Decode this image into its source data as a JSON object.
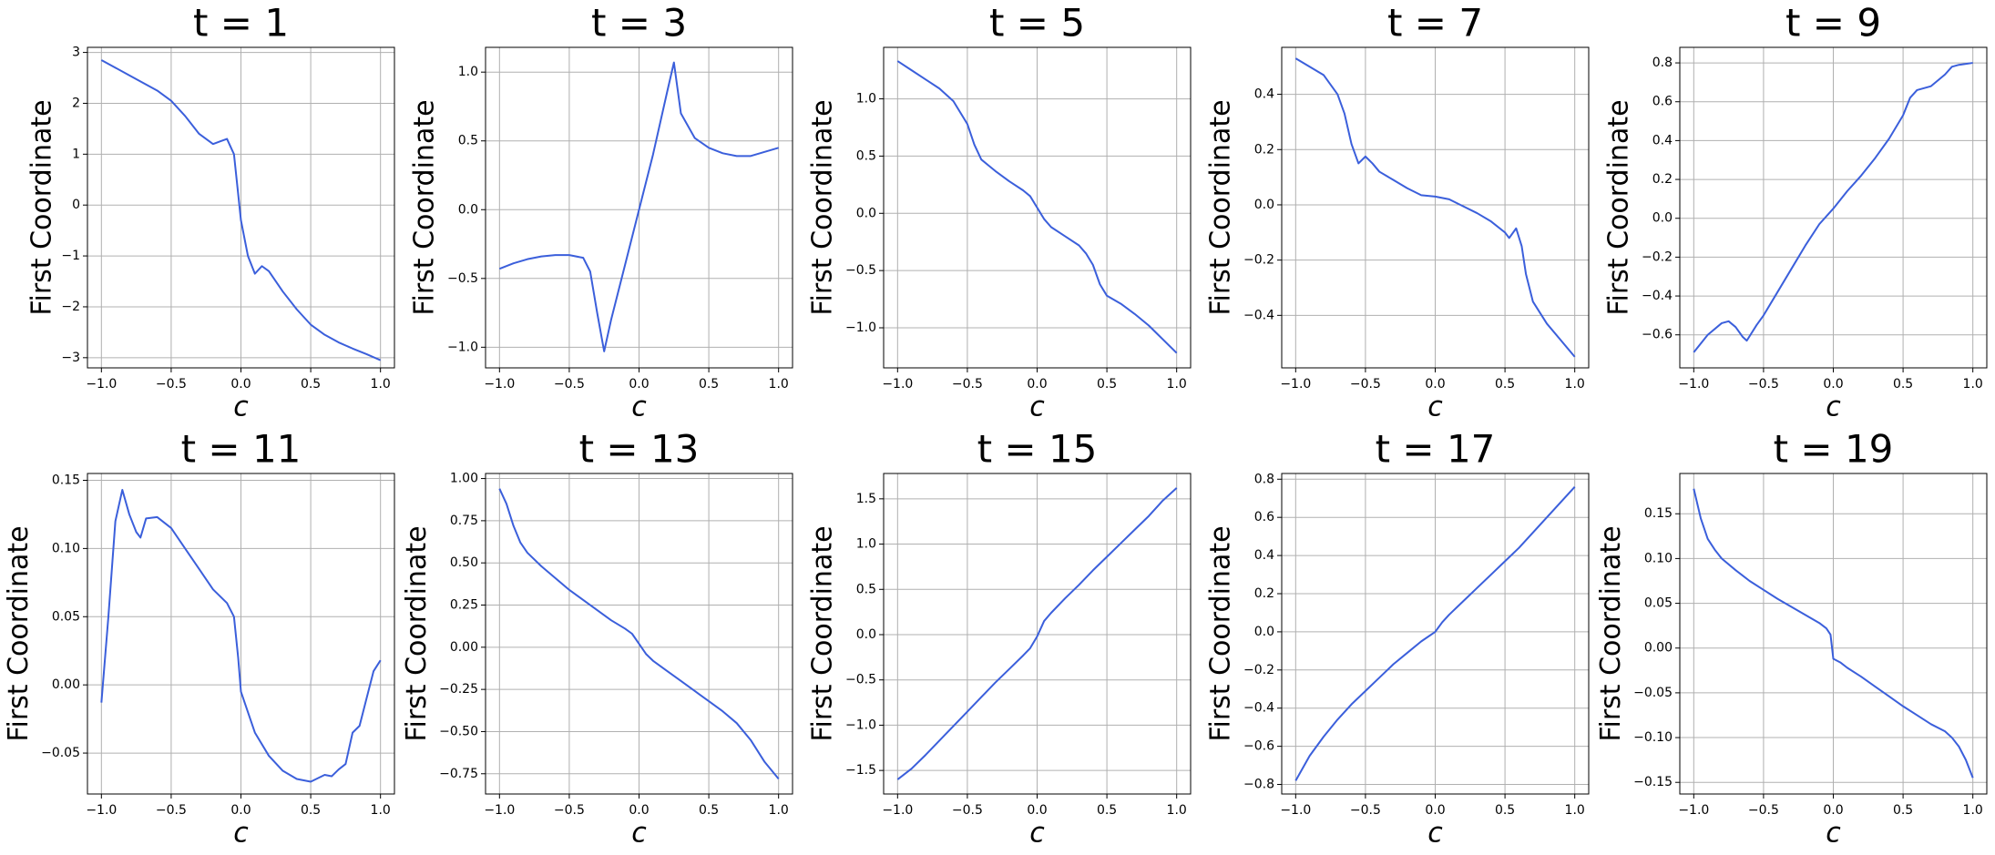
{
  "chart_data": [
    {
      "type": "line",
      "title": "t = 1",
      "x_label": "c",
      "y_label": "First Coordinate",
      "color": "#3b5fdb",
      "grid": true,
      "x": [
        -1,
        -0.9,
        -0.8,
        -0.7,
        -0.6,
        -0.5,
        -0.4,
        -0.3,
        -0.2,
        -0.15,
        -0.1,
        -0.05,
        0,
        0.05,
        0.1,
        0.15,
        0.2,
        0.3,
        0.4,
        0.5,
        0.6,
        0.7,
        0.8,
        0.9,
        1
      ],
      "values": [
        2.85,
        2.7,
        2.55,
        2.4,
        2.25,
        2.05,
        1.75,
        1.4,
        1.2,
        1.25,
        1.3,
        1.0,
        -0.3,
        -1.0,
        -1.35,
        -1.2,
        -1.3,
        -1.7,
        -2.05,
        -2.35,
        -2.55,
        -2.7,
        -2.82,
        -2.93,
        -3.05
      ],
      "xlim": [
        -1.1,
        1.1
      ],
      "ylim": [
        -3.2,
        3.1
      ],
      "xticks": [
        {
          "value": -1,
          "label": "−1.0"
        },
        {
          "value": -0.5,
          "label": "−0.5"
        },
        {
          "value": 0,
          "label": "0.0"
        },
        {
          "value": 0.5,
          "label": "0.5"
        },
        {
          "value": 1,
          "label": "1.0"
        }
      ],
      "yticks": [
        {
          "value": -3,
          "label": "−3"
        },
        {
          "value": -2,
          "label": "−2"
        },
        {
          "value": -1,
          "label": "−1"
        },
        0,
        1,
        2,
        3
      ]
    },
    {
      "type": "line",
      "title": "t = 3",
      "x_label": "c",
      "y_label": "First Coordinate",
      "color": "#3b5fdb",
      "grid": true,
      "x": [
        -1,
        -0.9,
        -0.8,
        -0.7,
        -0.6,
        -0.5,
        -0.4,
        -0.35,
        -0.3,
        -0.25,
        -0.2,
        -0.1,
        0,
        0.1,
        0.2,
        0.25,
        0.3,
        0.4,
        0.5,
        0.6,
        0.7,
        0.8,
        0.9,
        1
      ],
      "values": [
        -0.43,
        -0.39,
        -0.36,
        -0.34,
        -0.33,
        -0.33,
        -0.35,
        -0.45,
        -0.75,
        -1.03,
        -0.8,
        -0.4,
        0.0,
        0.4,
        0.85,
        1.07,
        0.7,
        0.52,
        0.45,
        0.41,
        0.39,
        0.39,
        0.42,
        0.45
      ],
      "xlim": [
        -1.1,
        1.1
      ],
      "ylim": [
        -1.15,
        1.18
      ],
      "xticks": [
        {
          "value": -1,
          "label": "−1.0"
        },
        {
          "value": -0.5,
          "label": "−0.5"
        },
        {
          "value": 0,
          "label": "0.0"
        },
        {
          "value": 0.5,
          "label": "0.5"
        },
        {
          "value": 1,
          "label": "1.0"
        }
      ],
      "yticks": [
        {
          "value": -1,
          "label": "−1.0"
        },
        {
          "value": -0.5,
          "label": "−0.5"
        },
        {
          "value": 0,
          "label": "0.0"
        },
        0.5,
        {
          "value": 1,
          "label": "1.0"
        }
      ]
    },
    {
      "type": "line",
      "title": "t = 5",
      "x_label": "c",
      "y_label": "First Coordinate",
      "color": "#3b5fdb",
      "grid": true,
      "x": [
        -1,
        -0.9,
        -0.8,
        -0.7,
        -0.6,
        -0.5,
        -0.45,
        -0.4,
        -0.35,
        -0.3,
        -0.2,
        -0.1,
        -0.05,
        0,
        0.05,
        0.1,
        0.2,
        0.3,
        0.35,
        0.4,
        0.45,
        0.5,
        0.6,
        0.7,
        0.8,
        0.9,
        1
      ],
      "values": [
        1.33,
        1.25,
        1.17,
        1.09,
        0.98,
        0.78,
        0.6,
        0.47,
        0.42,
        0.37,
        0.28,
        0.2,
        0.15,
        0.05,
        -0.05,
        -0.12,
        -0.2,
        -0.28,
        -0.35,
        -0.45,
        -0.62,
        -0.72,
        -0.79,
        -0.88,
        -0.98,
        -1.1,
        -1.22
      ],
      "xlim": [
        -1.1,
        1.1
      ],
      "ylim": [
        -1.35,
        1.45
      ],
      "xticks": [
        {
          "value": -1,
          "label": "−1.0"
        },
        {
          "value": -0.5,
          "label": "−0.5"
        },
        {
          "value": 0,
          "label": "0.0"
        },
        {
          "value": 0.5,
          "label": "0.5"
        },
        {
          "value": 1,
          "label": "1.0"
        }
      ],
      "yticks": [
        {
          "value": -1,
          "label": "−1.0"
        },
        {
          "value": -0.5,
          "label": "−0.5"
        },
        {
          "value": 0,
          "label": "0.0"
        },
        0.5,
        {
          "value": 1,
          "label": "1.0"
        }
      ]
    },
    {
      "type": "line",
      "title": "t = 7",
      "x_label": "c",
      "y_label": "First Coordinate",
      "color": "#3b5fdb",
      "grid": true,
      "x": [
        -1,
        -0.9,
        -0.8,
        -0.7,
        -0.65,
        -0.6,
        -0.55,
        -0.5,
        -0.45,
        -0.4,
        -0.3,
        -0.2,
        -0.1,
        0,
        0.1,
        0.2,
        0.3,
        0.4,
        0.5,
        0.53,
        0.58,
        0.62,
        0.65,
        0.7,
        0.8,
        0.9,
        1
      ],
      "values": [
        0.53,
        0.5,
        0.47,
        0.4,
        0.33,
        0.22,
        0.15,
        0.175,
        0.15,
        0.12,
        0.09,
        0.06,
        0.035,
        0.03,
        0.02,
        -0.005,
        -0.03,
        -0.06,
        -0.1,
        -0.12,
        -0.085,
        -0.15,
        -0.25,
        -0.35,
        -0.43,
        -0.49,
        -0.55
      ],
      "xlim": [
        -1.1,
        1.1
      ],
      "ylim": [
        -0.59,
        0.57
      ],
      "xticks": [
        {
          "value": -1,
          "label": "−1.0"
        },
        {
          "value": -0.5,
          "label": "−0.5"
        },
        {
          "value": 0,
          "label": "0.0"
        },
        {
          "value": 0.5,
          "label": "0.5"
        },
        {
          "value": 1,
          "label": "1.0"
        }
      ],
      "yticks": [
        {
          "value": -0.4,
          "label": "−0.4"
        },
        {
          "value": -0.2,
          "label": "−0.2"
        },
        {
          "value": 0,
          "label": "0.0"
        },
        0.2,
        0.4
      ]
    },
    {
      "type": "line",
      "title": "t = 9",
      "x_label": "c",
      "y_label": "First Coordinate",
      "color": "#3b5fdb",
      "grid": true,
      "x": [
        -1,
        -0.9,
        -0.8,
        -0.75,
        -0.7,
        -0.65,
        -0.62,
        -0.55,
        -0.5,
        -0.4,
        -0.3,
        -0.2,
        -0.1,
        0,
        0.1,
        0.2,
        0.3,
        0.4,
        0.5,
        0.55,
        0.6,
        0.7,
        0.8,
        0.85,
        0.9,
        1
      ],
      "values": [
        -0.69,
        -0.6,
        -0.54,
        -0.53,
        -0.56,
        -0.61,
        -0.63,
        -0.55,
        -0.5,
        -0.38,
        -0.26,
        -0.14,
        -0.03,
        0.05,
        0.14,
        0.22,
        0.31,
        0.41,
        0.53,
        0.62,
        0.66,
        0.68,
        0.74,
        0.78,
        0.79,
        0.8
      ],
      "xlim": [
        -1.1,
        1.1
      ],
      "ylim": [
        -0.77,
        0.88
      ],
      "xticks": [
        {
          "value": -1,
          "label": "−1.0"
        },
        {
          "value": -0.5,
          "label": "−0.5"
        },
        {
          "value": 0,
          "label": "0.0"
        },
        {
          "value": 0.5,
          "label": "0.5"
        },
        {
          "value": 1,
          "label": "1.0"
        }
      ],
      "yticks": [
        {
          "value": -0.6,
          "label": "−0.6"
        },
        {
          "value": -0.4,
          "label": "−0.4"
        },
        {
          "value": -0.2,
          "label": "−0.2"
        },
        {
          "value": 0,
          "label": "0.0"
        },
        0.2,
        0.4,
        0.6,
        0.8
      ]
    },
    {
      "type": "line",
      "title": "t = 11",
      "x_label": "c",
      "y_label": "First Coordinate",
      "color": "#3b5fdb",
      "grid": true,
      "x": [
        -1,
        -0.95,
        -0.9,
        -0.85,
        -0.8,
        -0.75,
        -0.72,
        -0.68,
        -0.6,
        -0.5,
        -0.4,
        -0.3,
        -0.2,
        -0.1,
        -0.05,
        -0.02,
        0,
        0.1,
        0.2,
        0.3,
        0.4,
        0.5,
        0.6,
        0.65,
        0.7,
        0.75,
        0.8,
        0.85,
        0.9,
        0.95,
        1
      ],
      "values": [
        -0.013,
        0.05,
        0.12,
        0.143,
        0.125,
        0.112,
        0.108,
        0.122,
        0.123,
        0.115,
        0.1,
        0.085,
        0.07,
        0.06,
        0.05,
        0.02,
        -0.005,
        -0.035,
        -0.052,
        -0.063,
        -0.069,
        -0.071,
        -0.066,
        -0.067,
        -0.062,
        -0.058,
        -0.035,
        -0.03,
        -0.01,
        0.01,
        0.018
      ],
      "xlim": [
        -1.1,
        1.1
      ],
      "ylim": [
        -0.08,
        0.155
      ],
      "xticks": [
        {
          "value": -1,
          "label": "−1.0"
        },
        {
          "value": -0.5,
          "label": "−0.5"
        },
        {
          "value": 0,
          "label": "0.0"
        },
        {
          "value": 0.5,
          "label": "0.5"
        },
        {
          "value": 1,
          "label": "1.0"
        }
      ],
      "yticks": [
        {
          "value": -0.05,
          "label": "−0.05"
        },
        {
          "value": 0,
          "label": "0.00"
        },
        0.05,
        {
          "value": 0.1,
          "label": "0.10"
        },
        0.15
      ]
    },
    {
      "type": "line",
      "title": "t = 13",
      "x_label": "c",
      "y_label": "First Coordinate",
      "color": "#3b5fdb",
      "grid": true,
      "x": [
        -1,
        -0.95,
        -0.9,
        -0.85,
        -0.8,
        -0.7,
        -0.6,
        -0.5,
        -0.4,
        -0.3,
        -0.2,
        -0.1,
        -0.05,
        0,
        0.05,
        0.1,
        0.2,
        0.3,
        0.4,
        0.5,
        0.6,
        0.7,
        0.8,
        0.9,
        1
      ],
      "values": [
        0.94,
        0.85,
        0.72,
        0.62,
        0.56,
        0.48,
        0.41,
        0.34,
        0.28,
        0.22,
        0.16,
        0.11,
        0.08,
        0.02,
        -0.04,
        -0.08,
        -0.14,
        -0.2,
        -0.26,
        -0.32,
        -0.38,
        -0.45,
        -0.55,
        -0.68,
        -0.78
      ],
      "xlim": [
        -1.1,
        1.1
      ],
      "ylim": [
        -0.87,
        1.03
      ],
      "xticks": [
        {
          "value": -1,
          "label": "−1.0"
        },
        {
          "value": -0.5,
          "label": "−0.5"
        },
        {
          "value": 0,
          "label": "0.0"
        },
        {
          "value": 0.5,
          "label": "0.5"
        },
        {
          "value": 1,
          "label": "1.0"
        }
      ],
      "yticks": [
        {
          "value": -0.75,
          "label": "−0.75"
        },
        {
          "value": -0.5,
          "label": "−0.50"
        },
        {
          "value": -0.25,
          "label": "−0.25"
        },
        {
          "value": 0,
          "label": "0.00"
        },
        0.25,
        {
          "value": 0.5,
          "label": "0.50"
        },
        0.75,
        {
          "value": 1,
          "label": "1.00"
        }
      ]
    },
    {
      "type": "line",
      "title": "t = 15",
      "x_label": "c",
      "y_label": "First Coordinate",
      "color": "#3b5fdb",
      "grid": true,
      "x": [
        -1,
        -0.9,
        -0.8,
        -0.7,
        -0.6,
        -0.5,
        -0.4,
        -0.3,
        -0.2,
        -0.1,
        -0.05,
        0,
        0.05,
        0.1,
        0.2,
        0.3,
        0.4,
        0.5,
        0.6,
        0.7,
        0.8,
        0.9,
        1
      ],
      "values": [
        -1.6,
        -1.48,
        -1.33,
        -1.17,
        -1.01,
        -0.85,
        -0.69,
        -0.53,
        -0.38,
        -0.23,
        -0.15,
        -0.02,
        0.15,
        0.24,
        0.4,
        0.55,
        0.71,
        0.86,
        1.01,
        1.16,
        1.31,
        1.48,
        1.62
      ],
      "xlim": [
        -1.1,
        1.1
      ],
      "ylim": [
        -1.76,
        1.78
      ],
      "xticks": [
        {
          "value": -1,
          "label": "−1.0"
        },
        {
          "value": -0.5,
          "label": "−0.5"
        },
        {
          "value": 0,
          "label": "0.0"
        },
        {
          "value": 0.5,
          "label": "0.5"
        },
        {
          "value": 1,
          "label": "1.0"
        }
      ],
      "yticks": [
        {
          "value": -1.5,
          "label": "−1.5"
        },
        {
          "value": -1,
          "label": "−1.0"
        },
        {
          "value": -0.5,
          "label": "−0.5"
        },
        {
          "value": 0,
          "label": "0.0"
        },
        0.5,
        {
          "value": 1,
          "label": "1.0"
        },
        1.5
      ]
    },
    {
      "type": "line",
      "title": "t = 17",
      "x_label": "c",
      "y_label": "First Coordinate",
      "color": "#3b5fdb",
      "grid": true,
      "x": [
        -1,
        -0.9,
        -0.8,
        -0.7,
        -0.6,
        -0.5,
        -0.4,
        -0.3,
        -0.2,
        -0.1,
        0,
        0.05,
        0.1,
        0.2,
        0.3,
        0.4,
        0.5,
        0.6,
        0.7,
        0.8,
        0.9,
        1
      ],
      "values": [
        -0.78,
        -0.65,
        -0.55,
        -0.46,
        -0.38,
        -0.31,
        -0.24,
        -0.17,
        -0.11,
        -0.05,
        0.0,
        0.05,
        0.09,
        0.16,
        0.23,
        0.3,
        0.37,
        0.44,
        0.52,
        0.6,
        0.68,
        0.76
      ],
      "xlim": [
        -1.1,
        1.1
      ],
      "ylim": [
        -0.85,
        0.83
      ],
      "xticks": [
        {
          "value": -1,
          "label": "−1.0"
        },
        {
          "value": -0.5,
          "label": "−0.5"
        },
        {
          "value": 0,
          "label": "0.0"
        },
        {
          "value": 0.5,
          "label": "0.5"
        },
        {
          "value": 1,
          "label": "1.0"
        }
      ],
      "yticks": [
        {
          "value": -0.8,
          "label": "−0.8"
        },
        {
          "value": -0.6,
          "label": "−0.6"
        },
        {
          "value": -0.4,
          "label": "−0.4"
        },
        {
          "value": -0.2,
          "label": "−0.2"
        },
        {
          "value": 0,
          "label": "0.0"
        },
        0.2,
        0.4,
        0.6,
        0.8
      ]
    },
    {
      "type": "line",
      "title": "t = 19",
      "x_label": "c",
      "y_label": "First Coordinate",
      "color": "#3b5fdb",
      "grid": true,
      "x": [
        -1,
        -0.95,
        -0.9,
        -0.85,
        -0.8,
        -0.7,
        -0.6,
        -0.5,
        -0.4,
        -0.3,
        -0.2,
        -0.1,
        -0.05,
        -0.02,
        0,
        0.05,
        0.1,
        0.2,
        0.3,
        0.4,
        0.5,
        0.6,
        0.7,
        0.8,
        0.85,
        0.9,
        0.95,
        1
      ],
      "values": [
        0.178,
        0.145,
        0.122,
        0.11,
        0.1,
        0.087,
        0.075,
        0.065,
        0.055,
        0.046,
        0.037,
        0.028,
        0.022,
        0.015,
        -0.012,
        -0.016,
        -0.022,
        -0.032,
        -0.043,
        -0.054,
        -0.065,
        -0.075,
        -0.085,
        -0.093,
        -0.1,
        -0.11,
        -0.125,
        -0.145
      ],
      "xlim": [
        -1.1,
        1.1
      ],
      "ylim": [
        -0.163,
        0.195
      ],
      "xticks": [
        {
          "value": -1,
          "label": "−1.0"
        },
        {
          "value": -0.5,
          "label": "−0.5"
        },
        {
          "value": 0,
          "label": "0.0"
        },
        {
          "value": 0.5,
          "label": "0.5"
        },
        {
          "value": 1,
          "label": "1.0"
        }
      ],
      "yticks": [
        {
          "value": -0.15,
          "label": "−0.15"
        },
        {
          "value": -0.1,
          "label": "−0.10"
        },
        {
          "value": -0.05,
          "label": "−0.05"
        },
        {
          "value": 0,
          "label": "0.00"
        },
        0.05,
        {
          "value": 0.1,
          "label": "0.10"
        },
        0.15
      ]
    }
  ]
}
